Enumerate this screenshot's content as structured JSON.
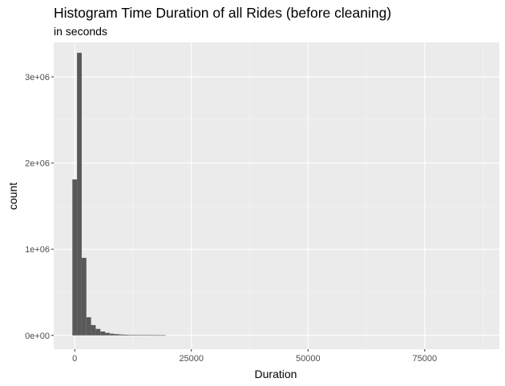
{
  "chart_data": {
    "type": "bar",
    "title": "Histogram Time Duration of all Rides (before cleaning)",
    "subtitle": "in seconds",
    "xlabel": "Duration",
    "ylabel": "count",
    "xlim": [
      -4500,
      91000
    ],
    "ylim": [
      -160000,
      3400000
    ],
    "x_ticks": [
      0,
      25000,
      50000,
      75000
    ],
    "x_tick_labels": [
      "0",
      "25000",
      "50000",
      "75000"
    ],
    "y_ticks": [
      0,
      1000000,
      2000000,
      3000000
    ],
    "y_tick_labels": [
      "0e+00",
      "1e+06",
      "2e+06",
      "3e+06"
    ],
    "bin_width": 1000,
    "bins": [
      {
        "x0": -500,
        "x1": 500,
        "count": 1810000
      },
      {
        "x0": 500,
        "x1": 1500,
        "count": 3280000
      },
      {
        "x0": 1500,
        "x1": 2500,
        "count": 900000
      },
      {
        "x0": 2500,
        "x1": 3500,
        "count": 210000
      },
      {
        "x0": 3500,
        "x1": 4500,
        "count": 120000
      },
      {
        "x0": 4500,
        "x1": 5500,
        "count": 75000
      },
      {
        "x0": 5500,
        "x1": 6500,
        "count": 45000
      },
      {
        "x0": 6500,
        "x1": 7500,
        "count": 30000
      },
      {
        "x0": 7500,
        "x1": 8500,
        "count": 20000
      },
      {
        "x0": 8500,
        "x1": 9500,
        "count": 15000
      },
      {
        "x0": 9500,
        "x1": 10500,
        "count": 10000
      },
      {
        "x0": 10500,
        "x1": 11500,
        "count": 8000
      },
      {
        "x0": 11500,
        "x1": 12500,
        "count": 6000
      },
      {
        "x0": 12500,
        "x1": 13500,
        "count": 5000
      },
      {
        "x0": 13500,
        "x1": 14500,
        "count": 4000
      },
      {
        "x0": 14500,
        "x1": 15500,
        "count": 3500
      },
      {
        "x0": 15500,
        "x1": 16500,
        "count": 3000
      },
      {
        "x0": 16500,
        "x1": 17500,
        "count": 2500
      },
      {
        "x0": 17500,
        "x1": 18500,
        "count": 2000
      },
      {
        "x0": 18500,
        "x1": 19500,
        "count": 2000
      }
    ],
    "colors": {
      "panel": "#ebebeb",
      "grid_major": "#ffffff",
      "grid_minor": "#f5f5f5",
      "bar": "#595959"
    },
    "legend": "none",
    "grid": true
  }
}
